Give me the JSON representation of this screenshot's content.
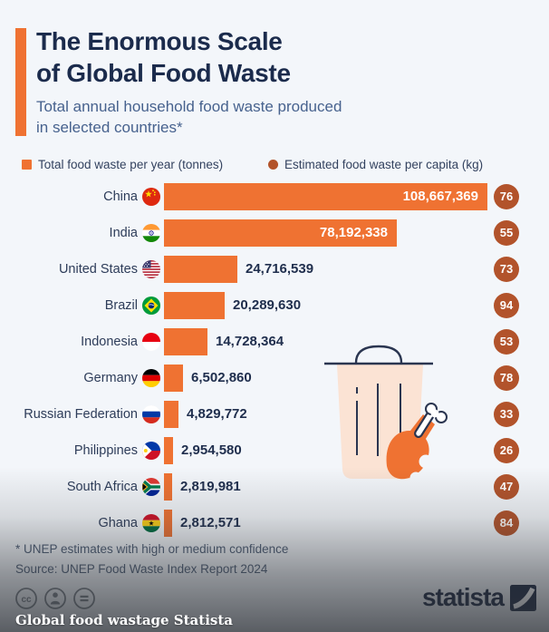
{
  "title_line1": "The Enormous Scale",
  "title_line2": "of Global Food Waste",
  "subtitle_line1": "Total annual household food waste produced",
  "subtitle_line2": "in selected countries*",
  "legend": {
    "bar_label": "Total food waste per year (tonnes)",
    "capita_label": "Estimated food waste per capita (kg)"
  },
  "chart_data": {
    "type": "bar",
    "orientation": "horizontal",
    "title": "The Enormous Scale of Global Food Waste",
    "subtitle": "Total annual household food waste produced in selected countries*",
    "categories": [
      "China",
      "India",
      "United States",
      "Brazil",
      "Indonesia",
      "Germany",
      "Russian Federation",
      "Philippines",
      "South Africa",
      "Ghana"
    ],
    "series": [
      {
        "name": "Total food waste per year (tonnes)",
        "values": [
          108667369,
          78192338,
          24716539,
          20289630,
          14728364,
          6502860,
          4829772,
          2954580,
          2819981,
          2812571
        ],
        "labels": [
          "108,667,369",
          "78,192,338",
          "24,716,539",
          "20,289,630",
          "14,728,364",
          "6,502,860",
          "4,829,772",
          "2,954,580",
          "2,819,981",
          "2,812,571"
        ]
      },
      {
        "name": "Estimated food waste per capita (kg)",
        "values": [
          76,
          55,
          73,
          94,
          53,
          78,
          33,
          26,
          47,
          84
        ]
      }
    ],
    "flags": [
      "china",
      "india",
      "usa",
      "brazil",
      "indonesia",
      "germany",
      "russia",
      "philippines",
      "south-africa",
      "ghana"
    ],
    "xlim": [
      0,
      110000000
    ],
    "grid": false,
    "legend_position": "top"
  },
  "footnote_line1": "* UNEP estimates with high or medium confidence",
  "footnote_line2": "Source: UNEP Food Waste Index Report 2024",
  "branding": {
    "logo_text": "statista",
    "caption": "Global food wastage Statista"
  },
  "icons": {
    "license": [
      "cc-icon",
      "attribution-icon",
      "no-derivatives-icon"
    ],
    "illustration": "trash-can-drumstick-illustration"
  },
  "colors": {
    "background": "#f3f6fa",
    "bar": "#ef7232",
    "capita_circle": "#b2532b",
    "accent": "#ef7232",
    "title": "#1b2b4c",
    "subtitle": "#47628e",
    "trash_fill": "#fbe3d4",
    "outline_navy": "#2a3550"
  }
}
